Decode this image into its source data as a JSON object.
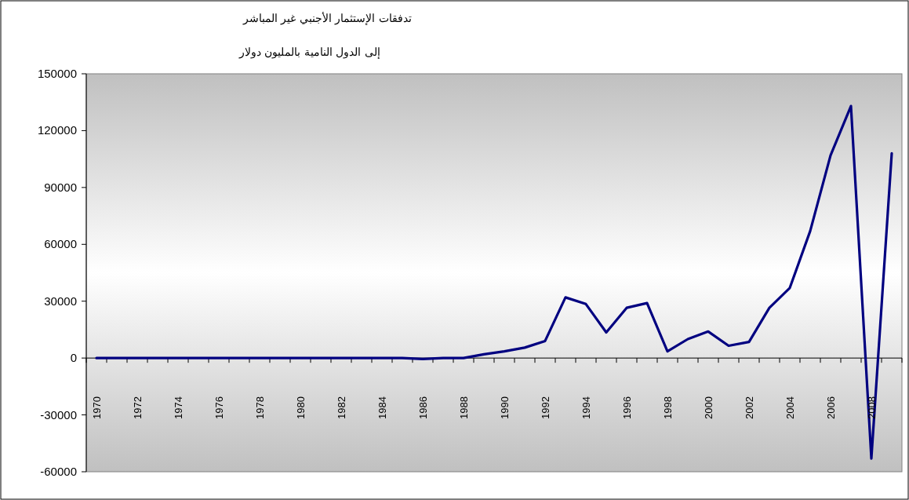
{
  "chart_data": {
    "type": "line",
    "title": "تدفقات الإستثمار الأجنبي غير المباشر",
    "subtitle": "إلى الدول النامية بالمليون دولار",
    "categories": [
      "1970",
      null,
      "1972",
      null,
      "1974",
      null,
      "1976",
      null,
      "1978",
      null,
      "1980",
      null,
      "1982",
      null,
      "1984",
      null,
      "1986",
      null,
      "1988",
      null,
      "1990",
      null,
      "1992",
      null,
      "1994",
      null,
      "1996",
      null,
      "1998",
      null,
      "2000",
      null,
      "2002",
      null,
      "2004",
      null,
      "2006",
      null,
      "2008",
      null
    ],
    "series": [
      {
        "color": "#000080",
        "values": [
          0,
          0,
          0,
          0,
          0,
          0,
          0,
          0,
          0,
          0,
          0,
          0,
          0,
          0,
          0,
          0,
          -500,
          0,
          0,
          2000,
          3500,
          5500,
          9000,
          32000,
          28500,
          13500,
          26500,
          29000,
          3500,
          10000,
          14000,
          6500,
          8500,
          26500,
          37000,
          67000,
          107000,
          133000,
          -53000,
          108000
        ]
      }
    ],
    "ylim": [
      -60000,
      150000
    ],
    "yticks": [
      -60000,
      -30000,
      0,
      30000,
      60000,
      90000,
      120000,
      150000
    ],
    "marker": "none",
    "line_style": "solid"
  }
}
